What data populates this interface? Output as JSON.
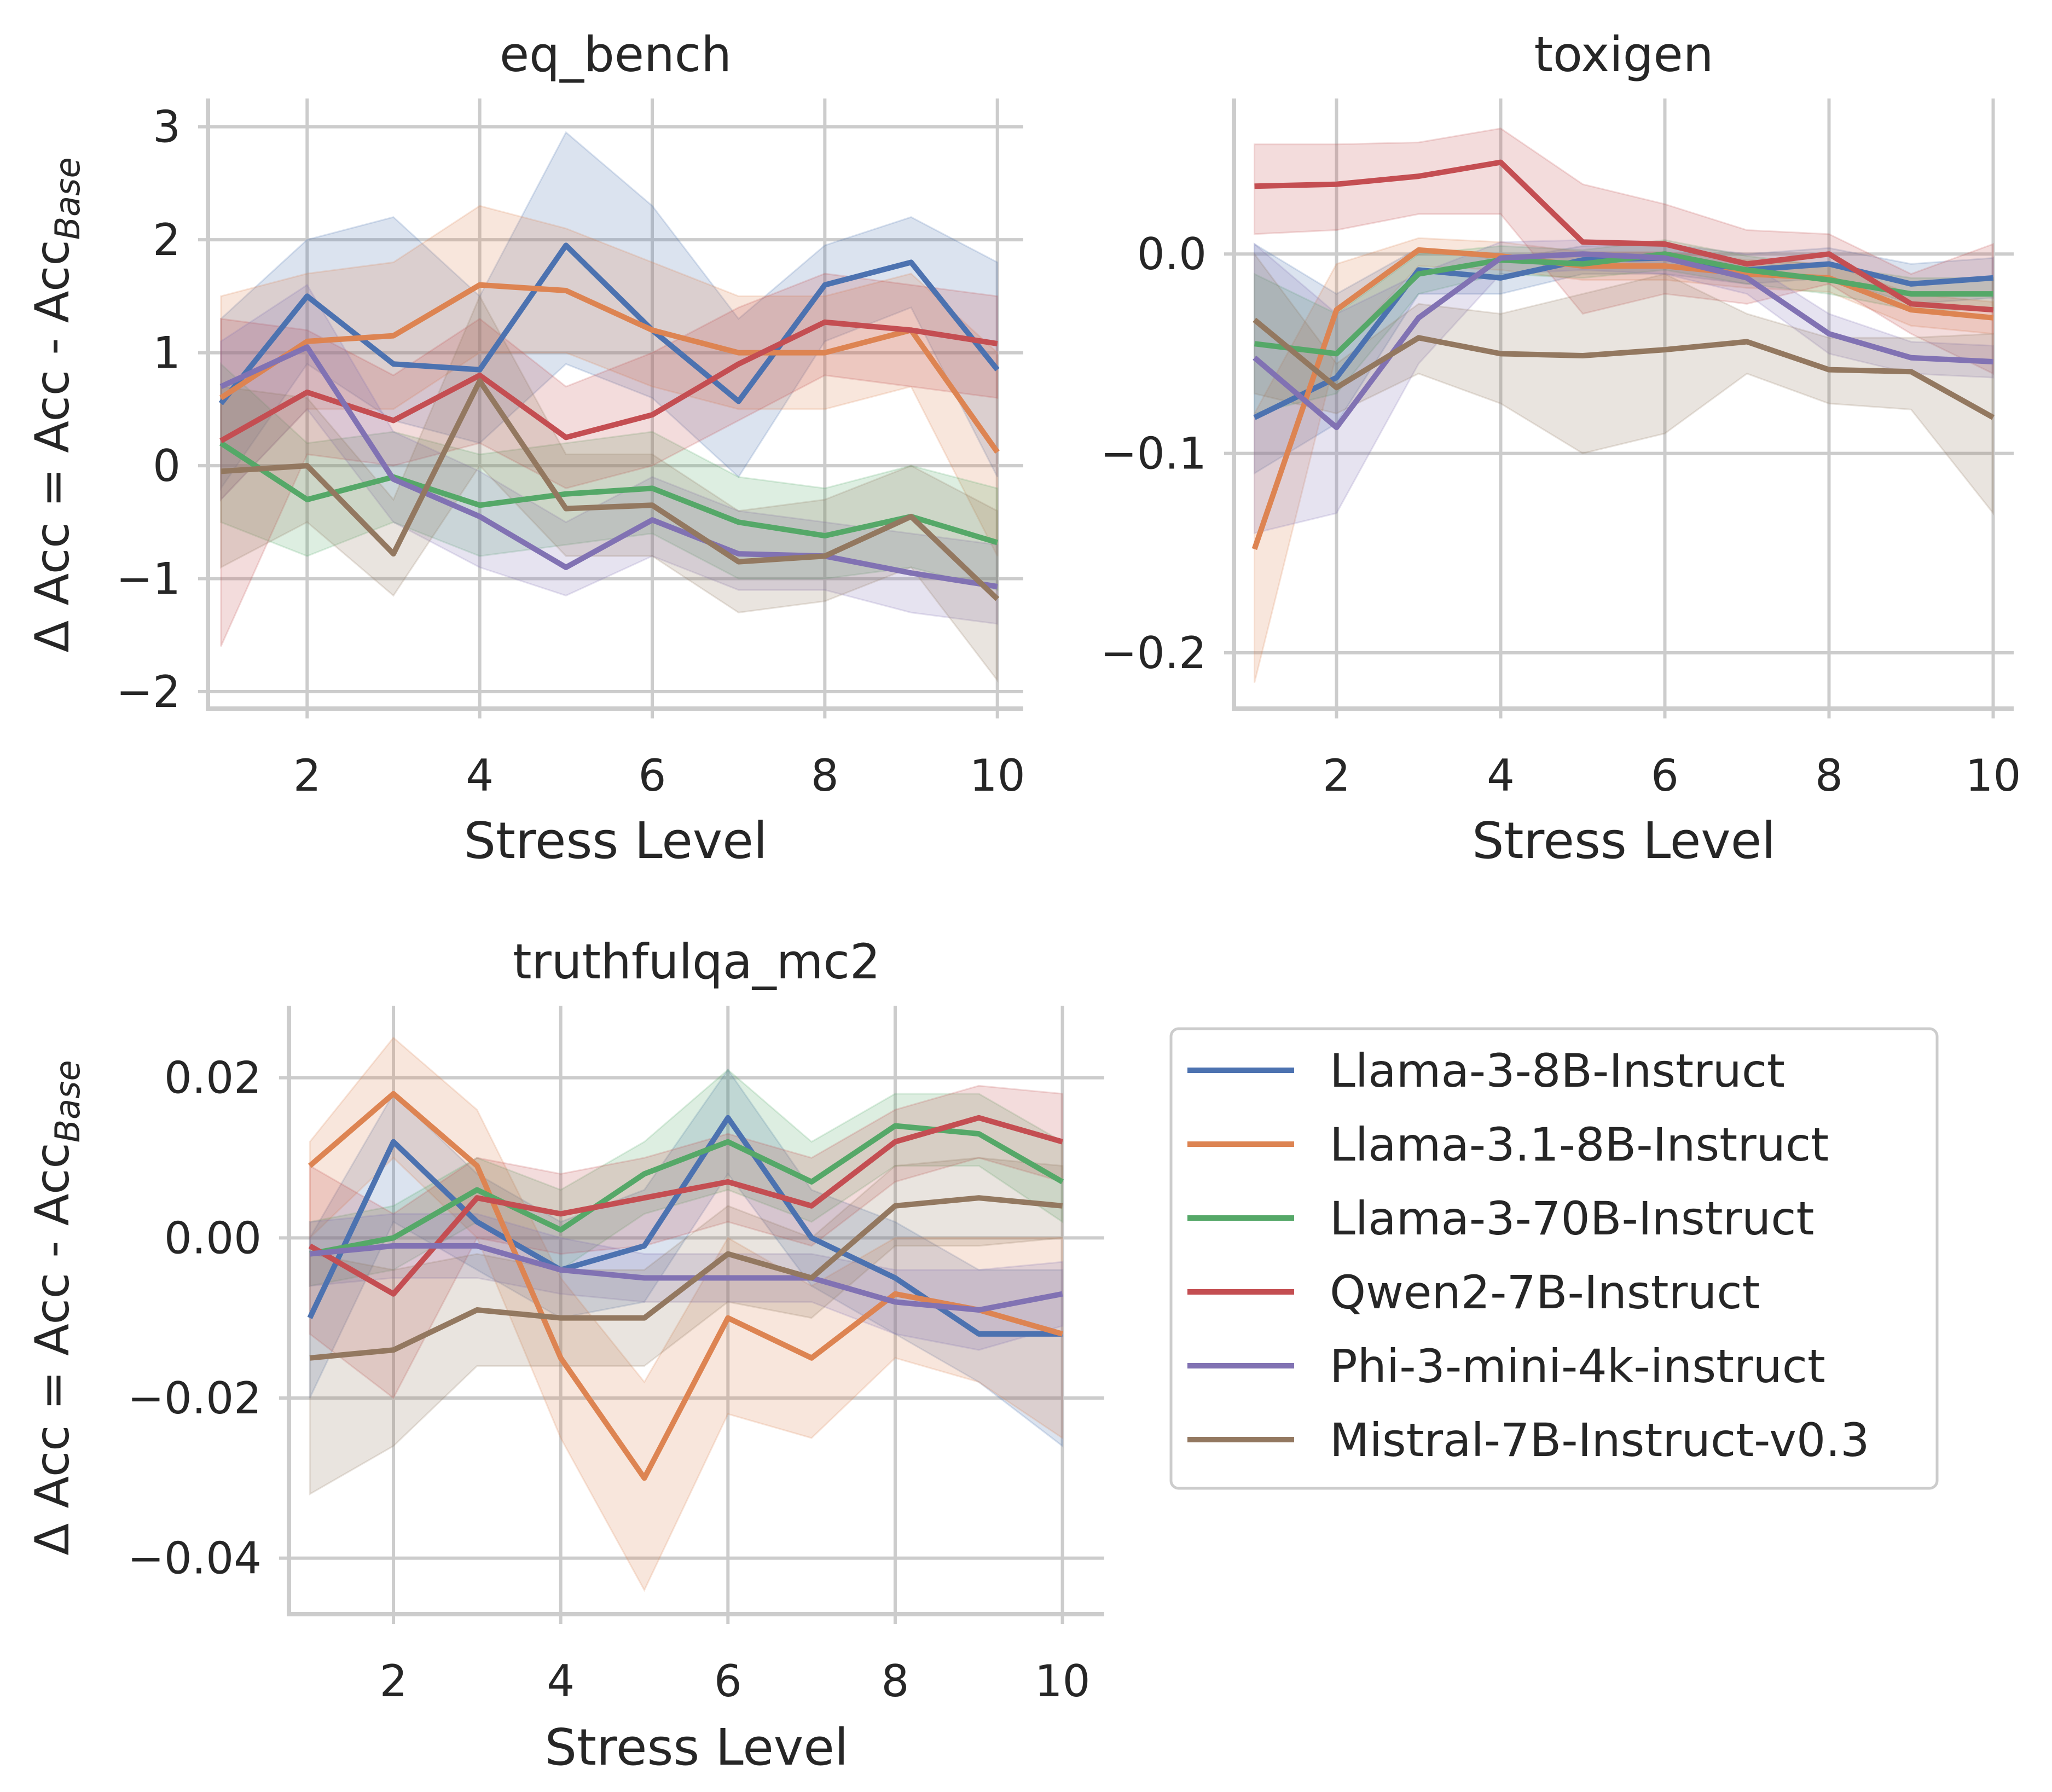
{
  "figure": {
    "legend": {
      "entries": [
        {
          "label": "Llama-3-8B-Instruct",
          "color": "#4c72b0"
        },
        {
          "label": "Llama-3.1-8B-Instruct",
          "color": "#dd8452"
        },
        {
          "label": "Llama-3-70B-Instruct",
          "color": "#55a868"
        },
        {
          "label": "Qwen2-7B-Instruct",
          "color": "#c44e52"
        },
        {
          "label": "Phi-3-mini-4k-instruct",
          "color": "#8172b3"
        },
        {
          "label": "Mistral-7B-Instruct-v0.3",
          "color": "#937860"
        }
      ]
    }
  },
  "chart_data": [
    {
      "type": "line",
      "title": "eq_bench",
      "xlabel": "Stress Level",
      "ylabel": "Δ Acc = Acc - Acc",
      "ylabel_subscript": "Base",
      "x": [
        1,
        2,
        3,
        4,
        5,
        6,
        7,
        8,
        9,
        10
      ],
      "xlim": [
        0.85,
        10.3
      ],
      "ylim": [
        -2.15,
        3.25
      ],
      "xticks": [
        2,
        4,
        6,
        8,
        10
      ],
      "xtick_labels": [
        "2",
        "4",
        "6",
        "8",
        "10"
      ],
      "yticks": [
        -2,
        -1,
        0,
        1,
        2,
        3
      ],
      "ytick_labels": [
        "−2",
        "−1",
        "0",
        "1",
        "2",
        "3"
      ],
      "series": [
        {
          "name": "Llama-3-8B-Instruct",
          "values": [
            0.55,
            1.5,
            0.9,
            0.85,
            1.95,
            1.2,
            0.57,
            1.6,
            1.8,
            0.85
          ],
          "ci_low": [
            -0.2,
            0.9,
            0.4,
            0.2,
            0.9,
            0.6,
            -0.1,
            1.1,
            1.4,
            -0.1
          ],
          "ci_high": [
            1.3,
            2.0,
            2.2,
            1.5,
            2.95,
            2.3,
            1.3,
            1.95,
            2.2,
            1.8
          ]
        },
        {
          "name": "Llama-3.1-8B-Instruct",
          "values": [
            0.6,
            1.1,
            1.15,
            1.6,
            1.55,
            1.2,
            1.0,
            1.0,
            1.2,
            0.12
          ],
          "ci_low": [
            -0.3,
            0.5,
            0.5,
            1.0,
            1.0,
            0.7,
            0.5,
            0.5,
            0.7,
            -0.8
          ],
          "ci_high": [
            1.5,
            1.7,
            1.8,
            2.3,
            2.1,
            1.8,
            1.5,
            1.5,
            1.7,
            1.0
          ]
        },
        {
          "name": "Llama-3-70B-Instruct",
          "values": [
            0.2,
            -0.3,
            -0.1,
            -0.35,
            -0.25,
            -0.2,
            -0.5,
            -0.62,
            -0.45,
            -0.68
          ],
          "ci_low": [
            -0.5,
            -0.8,
            -0.5,
            -0.8,
            -0.7,
            -0.6,
            -1.0,
            -1.0,
            -0.9,
            -1.1
          ],
          "ci_high": [
            0.9,
            0.2,
            0.3,
            0.1,
            0.2,
            0.3,
            -0.1,
            -0.2,
            0.0,
            -0.2
          ]
        },
        {
          "name": "Qwen2-7B-Instruct",
          "values": [
            0.22,
            0.65,
            0.4,
            0.8,
            0.25,
            0.45,
            0.9,
            1.27,
            1.2,
            1.08
          ],
          "ci_low": [
            -1.6,
            0.1,
            0.0,
            0.2,
            -0.2,
            0.0,
            0.4,
            0.8,
            0.7,
            0.6
          ],
          "ci_high": [
            1.3,
            1.2,
            0.8,
            1.3,
            0.7,
            1.0,
            1.4,
            1.7,
            1.6,
            1.5
          ]
        },
        {
          "name": "Phi-3-mini-4k-instruct",
          "values": [
            0.7,
            1.05,
            -0.12,
            -0.45,
            -0.9,
            -0.48,
            -0.78,
            -0.8,
            -0.95,
            -1.07
          ],
          "ci_low": [
            -0.3,
            0.5,
            -0.5,
            -0.9,
            -1.15,
            -0.8,
            -1.1,
            -1.1,
            -1.3,
            -1.4
          ],
          "ci_high": [
            1.1,
            1.6,
            0.3,
            -0.05,
            -0.5,
            -0.1,
            -0.4,
            -0.5,
            -0.6,
            -0.7
          ]
        },
        {
          "name": "Mistral-7B-Instruct-v0.3",
          "values": [
            -0.05,
            0.0,
            -0.78,
            0.75,
            -0.38,
            -0.35,
            -0.85,
            -0.8,
            -0.45,
            -1.18
          ],
          "ci_low": [
            -0.9,
            -0.5,
            -1.15,
            0.0,
            -0.8,
            -0.8,
            -1.3,
            -1.2,
            -0.9,
            -1.9
          ],
          "ci_high": [
            0.7,
            0.6,
            -0.3,
            1.5,
            0.1,
            0.1,
            -0.4,
            -0.3,
            0.0,
            -0.4
          ]
        }
      ]
    },
    {
      "type": "line",
      "title": "toxigen",
      "xlabel": "Stress Level",
      "ylabel": "",
      "ylabel_subscript": "",
      "x": [
        1,
        2,
        3,
        4,
        5,
        6,
        7,
        8,
        9,
        10
      ],
      "xlim": [
        0.75,
        10.25
      ],
      "ylim": [
        -0.228,
        0.078
      ],
      "xticks": [
        2,
        4,
        6,
        8,
        10
      ],
      "xtick_labels": [
        "2",
        "4",
        "6",
        "8",
        "10"
      ],
      "yticks": [
        -0.2,
        -0.1,
        0.0
      ],
      "ytick_labels": [
        "−0.2",
        "−0.1",
        "0.0"
      ],
      "series": [
        {
          "name": "Llama-3-8B-Instruct",
          "values": [
            -0.082,
            -0.062,
            -0.008,
            -0.012,
            -0.003,
            -0.002,
            -0.008,
            -0.005,
            -0.015,
            -0.012
          ],
          "ci_low": [
            -0.11,
            -0.085,
            -0.02,
            -0.02,
            -0.01,
            -0.01,
            -0.015,
            -0.012,
            -0.025,
            -0.022
          ],
          "ci_high": [
            0.005,
            -0.02,
            0.003,
            -0.003,
            0.004,
            0.005,
            0.0,
            0.003,
            -0.005,
            -0.002
          ]
        },
        {
          "name": "Llama-3.1-8B-Instruct",
          "values": [
            -0.148,
            -0.028,
            0.002,
            -0.001,
            -0.006,
            -0.006,
            -0.01,
            -0.012,
            -0.028,
            -0.032
          ],
          "ci_low": [
            -0.215,
            -0.05,
            -0.006,
            -0.008,
            -0.013,
            -0.013,
            -0.017,
            -0.019,
            -0.036,
            -0.04
          ],
          "ci_high": [
            -0.08,
            -0.005,
            0.008,
            0.006,
            0.001,
            0.001,
            -0.003,
            -0.005,
            -0.02,
            -0.024
          ]
        },
        {
          "name": "Llama-3-70B-Instruct",
          "values": [
            -0.045,
            -0.05,
            -0.01,
            -0.003,
            -0.005,
            0.0,
            -0.008,
            -0.013,
            -0.02,
            -0.02
          ],
          "ci_low": [
            -0.08,
            -0.07,
            -0.02,
            -0.01,
            -0.012,
            -0.008,
            -0.015,
            -0.02,
            -0.028,
            -0.028
          ],
          "ci_high": [
            -0.01,
            -0.03,
            0.0,
            0.004,
            0.002,
            0.007,
            -0.001,
            -0.006,
            -0.012,
            -0.012
          ]
        },
        {
          "name": "Qwen2-7B-Instruct",
          "values": [
            0.034,
            0.035,
            0.039,
            0.046,
            0.006,
            0.005,
            -0.005,
            0.0,
            -0.025,
            -0.028
          ],
          "ci_low": [
            0.01,
            0.012,
            0.02,
            0.02,
            -0.03,
            -0.02,
            -0.025,
            -0.015,
            -0.04,
            -0.06
          ],
          "ci_high": [
            0.055,
            0.055,
            0.056,
            0.063,
            0.035,
            0.025,
            0.012,
            0.01,
            -0.01,
            0.005
          ]
        },
        {
          "name": "Phi-3-mini-4k-instruct",
          "values": [
            -0.052,
            -0.087,
            -0.032,
            -0.002,
            0.0,
            -0.002,
            -0.012,
            -0.04,
            -0.052,
            -0.054
          ],
          "ci_low": [
            -0.14,
            -0.13,
            -0.055,
            -0.01,
            -0.008,
            -0.01,
            -0.02,
            -0.05,
            -0.06,
            -0.062
          ],
          "ci_high": [
            0.005,
            -0.03,
            -0.01,
            0.006,
            0.007,
            0.006,
            -0.004,
            -0.03,
            -0.044,
            -0.046
          ]
        },
        {
          "name": "Mistral-7B-Instruct-v0.3",
          "values": [
            -0.033,
            -0.067,
            -0.042,
            -0.05,
            -0.051,
            -0.048,
            -0.044,
            -0.058,
            -0.059,
            -0.082
          ],
          "ci_low": [
            -0.07,
            -0.08,
            -0.06,
            -0.075,
            -0.1,
            -0.09,
            -0.06,
            -0.075,
            -0.078,
            -0.13
          ],
          "ci_high": [
            0.0,
            -0.055,
            -0.025,
            -0.03,
            -0.02,
            -0.01,
            -0.03,
            -0.042,
            -0.042,
            -0.04
          ]
        }
      ]
    },
    {
      "type": "line",
      "title": "truthfulqa_mc2",
      "xlabel": "Stress Level",
      "ylabel": "Δ Acc = Acc - Acc",
      "ylabel_subscript": "Base",
      "x": [
        1,
        2,
        3,
        4,
        5,
        6,
        7,
        8,
        9,
        10
      ],
      "xlim": [
        0.75,
        10.5
      ],
      "ylim": [
        -0.047,
        0.029
      ],
      "xticks": [
        2,
        4,
        6,
        8,
        10
      ],
      "xtick_labels": [
        "2",
        "4",
        "6",
        "8",
        "10"
      ],
      "yticks": [
        -0.04,
        -0.02,
        0.0,
        0.02
      ],
      "ytick_labels": [
        "−0.04",
        "−0.02",
        "0.00",
        "0.02"
      ],
      "series": [
        {
          "name": "Llama-3-8B-Instruct",
          "values": [
            -0.01,
            0.012,
            0.002,
            -0.004,
            -0.001,
            0.015,
            0.0,
            -0.005,
            -0.012,
            -0.012
          ],
          "ci_low": [
            -0.02,
            0.002,
            -0.004,
            -0.01,
            -0.008,
            0.008,
            -0.006,
            -0.012,
            -0.018,
            -0.026
          ],
          "ci_high": [
            0.0,
            0.018,
            0.008,
            0.002,
            0.006,
            0.021,
            0.006,
            0.002,
            -0.004,
            -0.004
          ]
        },
        {
          "name": "Llama-3.1-8B-Instruct",
          "values": [
            0.009,
            0.018,
            0.009,
            -0.015,
            -0.03,
            -0.01,
            -0.015,
            -0.007,
            -0.009,
            -0.012
          ],
          "ci_low": [
            0.0,
            0.01,
            0.0,
            -0.025,
            -0.044,
            -0.022,
            -0.025,
            -0.015,
            -0.018,
            -0.025
          ],
          "ci_high": [
            0.012,
            0.025,
            0.016,
            -0.005,
            -0.018,
            0.0,
            -0.006,
            0.0,
            0.0,
            0.0
          ]
        },
        {
          "name": "Llama-3-70B-Instruct",
          "values": [
            -0.002,
            0.0,
            0.006,
            0.001,
            0.008,
            0.012,
            0.007,
            0.014,
            0.013,
            0.007
          ],
          "ci_low": [
            -0.006,
            -0.004,
            0.002,
            -0.004,
            0.003,
            0.006,
            0.002,
            0.009,
            0.009,
            0.002
          ],
          "ci_high": [
            0.002,
            0.004,
            0.01,
            0.006,
            0.012,
            0.021,
            0.012,
            0.018,
            0.018,
            0.012
          ]
        },
        {
          "name": "Qwen2-7B-Instruct",
          "values": [
            -0.001,
            -0.007,
            0.005,
            0.003,
            0.005,
            0.007,
            0.004,
            0.012,
            0.015,
            0.012
          ],
          "ci_low": [
            -0.012,
            -0.02,
            0.0,
            -0.002,
            -0.001,
            0.002,
            -0.001,
            0.007,
            0.01,
            0.007
          ],
          "ci_high": [
            0.009,
            0.003,
            0.01,
            0.008,
            0.01,
            0.013,
            0.01,
            0.016,
            0.019,
            0.018
          ]
        },
        {
          "name": "Phi-3-mini-4k-instruct",
          "values": [
            -0.002,
            -0.001,
            -0.001,
            -0.004,
            -0.005,
            -0.005,
            -0.005,
            -0.008,
            -0.009,
            -0.007
          ],
          "ci_low": [
            -0.006,
            -0.005,
            -0.005,
            -0.007,
            -0.008,
            -0.008,
            -0.008,
            -0.012,
            -0.014,
            -0.011
          ],
          "ci_high": [
            0.002,
            0.003,
            0.003,
            0.0,
            -0.002,
            -0.002,
            -0.002,
            -0.004,
            -0.004,
            -0.003
          ]
        },
        {
          "name": "Mistral-7B-Instruct-v0.3",
          "values": [
            -0.015,
            -0.014,
            -0.009,
            -0.01,
            -0.01,
            -0.002,
            -0.005,
            0.004,
            0.005,
            0.004
          ],
          "ci_low": [
            -0.032,
            -0.026,
            -0.016,
            -0.016,
            -0.016,
            -0.008,
            -0.01,
            -0.001,
            -0.001,
            0.0
          ],
          "ci_high": [
            -0.002,
            -0.004,
            -0.002,
            -0.004,
            -0.004,
            0.004,
            0.0,
            0.009,
            0.01,
            0.009
          ]
        }
      ]
    }
  ]
}
